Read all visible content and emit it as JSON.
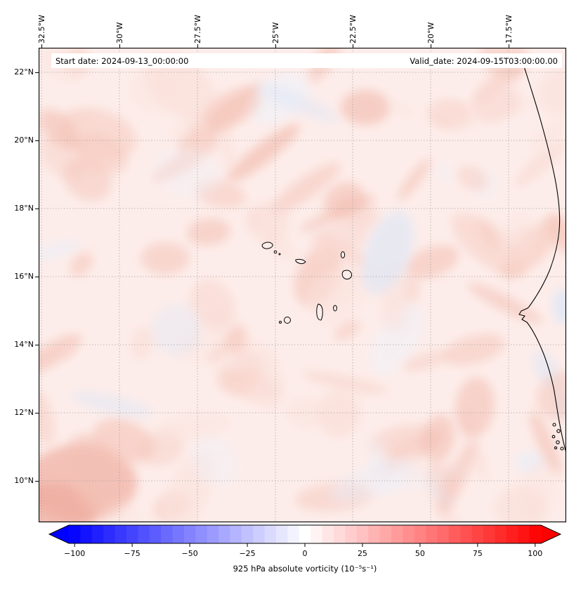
{
  "figure": {
    "annotations": {
      "start": "Start date: 2024-09-13_00:00:00",
      "valid": "Valid_date: 2024-09-15T03:00:00.00"
    }
  },
  "axes": {
    "lon_ticks": [
      "32.5°W",
      "30°W",
      "27.5°W",
      "25°W",
      "22.5°W",
      "20°W",
      "17.5°W"
    ],
    "lat_ticks": [
      "22°N",
      "20°N",
      "18°N",
      "16°N",
      "14°N",
      "12°N",
      "10°N"
    ]
  },
  "colorbar": {
    "tick_labels": [
      "−100",
      "−75",
      "−50",
      "−25",
      "0",
      "25",
      "50",
      "75",
      "100"
    ],
    "tick_values": [
      -100,
      -75,
      -50,
      -25,
      0,
      25,
      50,
      75,
      100
    ],
    "label": "925 hPa absolute vorticity (10⁻⁵s⁻¹)",
    "colormap": "blue-white-red",
    "color_blue": "#0000ff",
    "color_white": "#ffffff",
    "color_red": "#ff0000"
  },
  "chart_data": {
    "type": "heatmap",
    "title": "925 hPa absolute vorticity",
    "units": "10⁻⁵s⁻¹",
    "region": "Eastern tropical Atlantic: Cape Verde islands and West African coast",
    "annotations": [
      "Start date: 2024-09-13_00:00:00",
      "Valid_date: 2024-09-15T03:00:00.00"
    ],
    "x_axis": {
      "label": "longitude",
      "tick_labels": [
        "32.5°W",
        "30°W",
        "27.5°W",
        "25°W",
        "22.5°W",
        "20°W",
        "17.5°W"
      ],
      "range_deg": [
        -32.6,
        -15.7
      ]
    },
    "y_axis": {
      "label": "latitude",
      "tick_labels": [
        "22°N",
        "20°N",
        "18°N",
        "16°N",
        "14°N",
        "12°N",
        "10°N"
      ],
      "range_deg": [
        8.8,
        22.7
      ]
    },
    "colorbar": {
      "ticks": [
        -100,
        -75,
        -50,
        -25,
        0,
        25,
        50,
        75,
        100
      ],
      "range": [
        -100,
        100
      ],
      "colormap": "blue-white-red",
      "extend": "both",
      "n_levels": 41
    },
    "grid": {
      "lon_lines_deg_w": [
        32.5,
        30,
        27.5,
        25,
        22.5,
        20,
        17.5
      ],
      "lat_lines_deg_n": [
        22,
        20,
        18,
        16,
        14,
        12,
        10
      ],
      "style": "dashed"
    },
    "field_summary": "Mostly weak positive absolute vorticity (light red, ~5-25 x10⁻⁵ s⁻¹) across the whole domain, organized in small filaments and blobs, with scattered very weak negative (light blue) patches; strongest patch in the south-west corner; no intense vortex present.",
    "values_coarse": {
      "lons_deg": [
        -32.5,
        -30,
        -27.5,
        -25,
        -22.5,
        -20,
        -17.5
      ],
      "lats_deg": [
        22,
        20,
        18,
        16,
        14,
        12,
        10
      ],
      "values": [
        [
          10,
          8,
          12,
          10,
          15,
          8,
          10
        ],
        [
          8,
          15,
          18,
          12,
          20,
          10,
          8
        ],
        [
          10,
          12,
          15,
          10,
          12,
          8,
          10
        ],
        [
          12,
          10,
          8,
          12,
          10,
          15,
          8
        ],
        [
          15,
          12,
          10,
          15,
          18,
          10,
          12
        ],
        [
          18,
          10,
          12,
          8,
          15,
          12,
          8
        ],
        [
          20,
          15,
          10,
          12,
          10,
          8,
          10
        ]
      ]
    }
  }
}
